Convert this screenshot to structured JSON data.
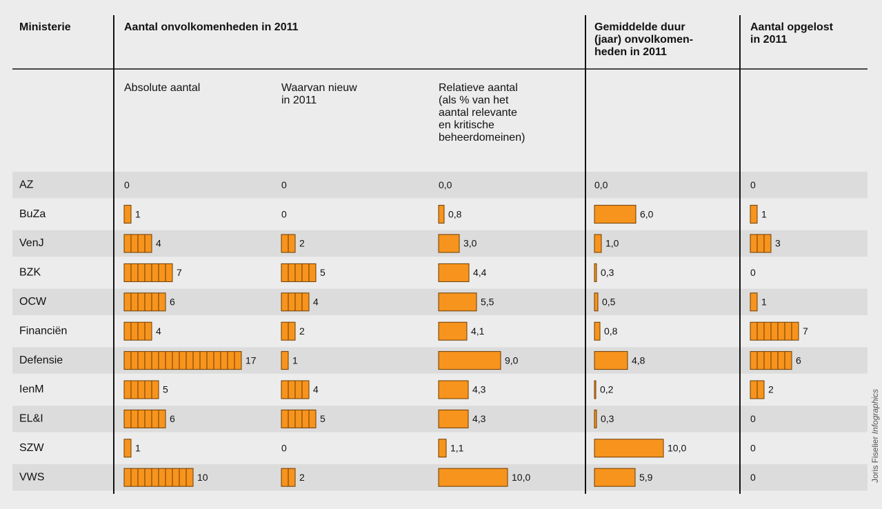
{
  "header": {
    "ministerie": [
      "Ministerie"
    ],
    "aantal": [
      "Aantal onvolkomenheden in 2011"
    ],
    "duur": [
      "Gemiddelde duur",
      "(jaar) onvolkomen-",
      "heden in 2011"
    ],
    "opgelost": [
      "Aantal opgelost",
      "in 2011"
    ]
  },
  "subheaders": [
    [
      "Absolute aantal"
    ],
    [
      "Waarvan nieuw",
      "in 2011"
    ],
    [
      "Relatieve aantal",
      "(als % van het",
      "aantal relevante",
      "en kritische",
      "beheerdomeinen)"
    ]
  ],
  "rows": [
    "AZ",
    "BuZa",
    "VenJ",
    "BZK",
    "OCW",
    "Financiën",
    "Defensie",
    "IenM",
    "EL&I",
    "SZW",
    "VWS"
  ],
  "columns": [
    {
      "values": [
        0,
        1,
        4,
        7,
        6,
        4,
        17,
        5,
        6,
        1,
        10
      ]
    },
    {
      "values": [
        0,
        0,
        2,
        5,
        4,
        2,
        1,
        4,
        5,
        0,
        2
      ]
    },
    {
      "values": [
        0.0,
        0.8,
        3.0,
        4.4,
        5.5,
        4.1,
        9.0,
        4.3,
        4.3,
        1.1,
        10.0
      ],
      "value_labels": [
        "0,0",
        "0,8",
        "3,0",
        "4,4",
        "5,5",
        "4,1",
        "9,0",
        "4,3",
        "4,3",
        "1,1",
        "10,0"
      ]
    },
    {
      "values": [
        0.0,
        6.0,
        1.0,
        0.3,
        0.5,
        0.8,
        4.8,
        0.2,
        0.3,
        10.0,
        5.9
      ],
      "value_labels": [
        "0,0",
        "6,0",
        "1,0",
        "0,3",
        "0,5",
        "0,8",
        "4,8",
        "0,2",
        "0,3",
        "10,0",
        "5,9"
      ]
    },
    {
      "values": [
        0,
        1,
        3,
        0,
        1,
        7,
        6,
        2,
        0,
        0,
        0
      ]
    }
  ],
  "bar_color": "#f7941d",
  "credit": [
    "Joris Fiselier",
    "Infographics"
  ]
}
